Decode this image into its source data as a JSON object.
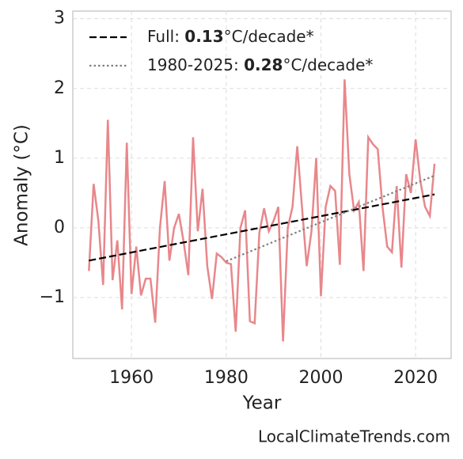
{
  "chart_data": {
    "type": "line",
    "xlabel": "Year",
    "ylabel": "Anomaly (°C)",
    "watermark": "LocalClimateTrends.com",
    "xlim": [
      1947.6,
      2027.5
    ],
    "ylim": [
      -1.875,
      3.11
    ],
    "xticks": [
      1960,
      1980,
      2000,
      2020
    ],
    "yticks": [
      {
        "value": -1,
        "label": "−1"
      },
      0,
      1,
      2,
      3
    ],
    "grid": true,
    "legend": "upper left",
    "series": [
      {
        "color": "#e8878b",
        "style": "solid",
        "x": [
          1951,
          1952,
          1953,
          1954,
          1955,
          1956,
          1957,
          1958,
          1959,
          1960,
          1961,
          1962,
          1963,
          1964,
          1965,
          1966,
          1967,
          1968,
          1969,
          1970,
          1971,
          1972,
          1973,
          1974,
          1975,
          1976,
          1977,
          1978,
          1979,
          1980,
          1981,
          1982,
          1983,
          1984,
          1985,
          1986,
          1987,
          1988,
          1989,
          1990,
          1991,
          1992,
          1993,
          1994,
          1995,
          1996,
          1997,
          1998,
          1999,
          2000,
          2001,
          2002,
          2003,
          2004,
          2005,
          2006,
          2007,
          2008,
          2009,
          2010,
          2011,
          2012,
          2013,
          2014,
          2015,
          2016,
          2017,
          2018,
          2019,
          2020,
          2021,
          2022,
          2023,
          2024
        ],
        "values": [
          -0.62,
          0.63,
          0.1,
          -0.82,
          1.55,
          -0.75,
          -0.18,
          -1.17,
          1.22,
          -0.95,
          -0.27,
          -0.97,
          -0.73,
          -0.73,
          -1.36,
          0.0,
          0.67,
          -0.47,
          0.0,
          0.2,
          -0.2,
          -0.68,
          1.3,
          -0.05,
          0.56,
          -0.55,
          -1.02,
          -0.37,
          -0.42,
          -0.5,
          -0.52,
          -1.49,
          0.0,
          0.25,
          -1.34,
          -1.37,
          -0.07,
          0.28,
          -0.05,
          0.1,
          0.3,
          -1.63,
          0.0,
          0.3,
          1.17,
          0.3,
          -0.55,
          -0.05,
          1.0,
          -0.98,
          0.3,
          0.6,
          0.53,
          -0.53,
          2.13,
          0.77,
          0.25,
          0.37,
          -0.62,
          1.3,
          1.2,
          1.13,
          0.3,
          -0.27,
          -0.35,
          0.6,
          -0.57,
          0.77,
          0.5,
          1.27,
          0.67,
          0.3,
          0.17,
          0.92
        ]
      },
      {
        "name": "Full: 0.13°C/decade*",
        "color": "#000000",
        "style": "dashed",
        "x": [
          1951,
          2024
        ],
        "values": [
          -0.47,
          0.48
        ]
      },
      {
        "name": "1980-2025: 0.28°C/decade*",
        "color": "#808080",
        "style": "dotted",
        "x": [
          1980,
          2024
        ],
        "values": [
          -0.48,
          0.75
        ]
      }
    ]
  }
}
